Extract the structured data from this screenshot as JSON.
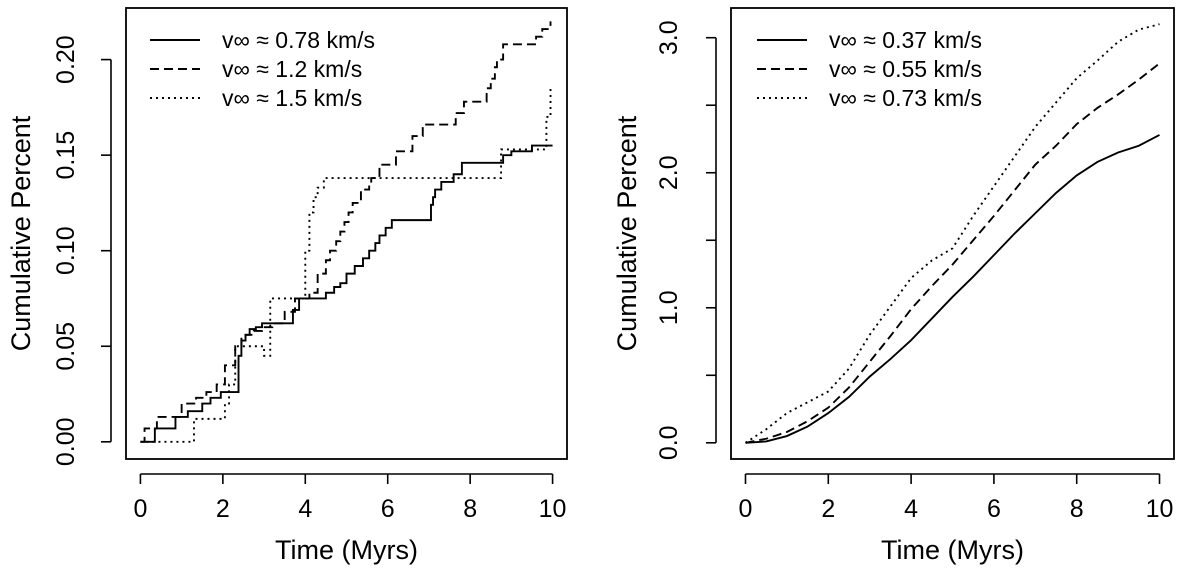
{
  "chart_data": [
    {
      "type": "line",
      "xlabel": "Time (Myrs)",
      "ylabel": "Cumulative Percent",
      "xlim": [
        -0.35,
        10.35
      ],
      "ylim": [
        -0.009,
        0.227
      ],
      "x_ticks": [
        0,
        2,
        4,
        6,
        8,
        10
      ],
      "x_tick_labels": [
        "0",
        "2",
        "4",
        "6",
        "8",
        "10"
      ],
      "y_ticks": [
        0,
        0.05,
        0.1,
        0.15,
        0.2
      ],
      "y_tick_labels": [
        "0.00",
        "0.05",
        "0.10",
        "0.15",
        "0.20"
      ],
      "legend_position": "top-left",
      "step": true,
      "series": [
        {
          "name": "v∞ ≈ 0.78 km/s",
          "line_style": "solid",
          "x": [
            0,
            0.35,
            0.55,
            0.85,
            1.15,
            1.5,
            1.7,
            1.95,
            2.2,
            2.38,
            2.45,
            2.55,
            2.65,
            2.8,
            2.95,
            3.5,
            3.7,
            3.85,
            4.4,
            4.5,
            4.7,
            4.85,
            5.0,
            5.2,
            5.4,
            5.55,
            5.7,
            5.8,
            5.95,
            6.1,
            7.0,
            7.05,
            7.1,
            7.15,
            7.3,
            7.6,
            7.8,
            8.4,
            8.8,
            9.0,
            9.5,
            10.0
          ],
          "y": [
            0,
            0.007,
            0.007,
            0.013,
            0.016,
            0.02,
            0.023,
            0.026,
            0.026,
            0.045,
            0.053,
            0.056,
            0.059,
            0.06,
            0.062,
            0.062,
            0.069,
            0.075,
            0.075,
            0.078,
            0.081,
            0.083,
            0.088,
            0.092,
            0.096,
            0.1,
            0.104,
            0.108,
            0.112,
            0.116,
            0.116,
            0.124,
            0.128,
            0.132,
            0.136,
            0.14,
            0.146,
            0.146,
            0.15,
            0.152,
            0.155,
            0.155
          ]
        },
        {
          "name": "v∞ ≈ 1.2 km/s",
          "line_style": "dashed",
          "x": [
            0,
            0.1,
            0.4,
            0.9,
            1.0,
            1.35,
            1.6,
            1.85,
            2.05,
            2.3,
            2.45,
            2.55,
            2.75,
            2.95,
            3.2,
            3.5,
            3.75,
            4.1,
            4.3,
            4.5,
            4.6,
            4.75,
            4.85,
            4.95,
            5.05,
            5.15,
            5.35,
            5.55,
            5.6,
            5.8,
            6.2,
            6.6,
            6.85,
            7.2,
            7.65,
            7.85,
            8.4,
            8.5,
            8.6,
            8.65,
            8.8,
            9.6,
            9.75,
            9.95
          ],
          "y": [
            0,
            0.007,
            0.013,
            0.013,
            0.02,
            0.023,
            0.026,
            0.03,
            0.04,
            0.05,
            0.055,
            0.056,
            0.058,
            0.06,
            0.062,
            0.068,
            0.075,
            0.078,
            0.088,
            0.095,
            0.1,
            0.105,
            0.11,
            0.115,
            0.12,
            0.125,
            0.132,
            0.135,
            0.138,
            0.145,
            0.152,
            0.16,
            0.166,
            0.166,
            0.172,
            0.178,
            0.185,
            0.19,
            0.196,
            0.2,
            0.208,
            0.212,
            0.216,
            0.22
          ]
        },
        {
          "name": "v∞ ≈ 1.5 km/s",
          "line_style": "dotted",
          "x": [
            0,
            0.5,
            1.2,
            1.3,
            2.05,
            2.15,
            2.3,
            2.7,
            3.0,
            3.15,
            3.9,
            4.0,
            4.1,
            4.2,
            4.3,
            4.45,
            8.75,
            9.85,
            9.95,
            10.0
          ],
          "y": [
            0,
            0,
            0,
            0.012,
            0.02,
            0.03,
            0.05,
            0.05,
            0.045,
            0.075,
            0.075,
            0.1,
            0.12,
            0.128,
            0.133,
            0.138,
            0.153,
            0.17,
            0.185,
            0.185
          ]
        }
      ]
    },
    {
      "type": "line",
      "xlabel": "Time (Myrs)",
      "ylabel": "Cumulative Percent",
      "xlim": [
        -0.35,
        10.35
      ],
      "ylim": [
        -0.12,
        3.22
      ],
      "x_ticks": [
        0,
        2,
        4,
        6,
        8,
        10
      ],
      "x_tick_labels": [
        "0",
        "2",
        "4",
        "6",
        "8",
        "10"
      ],
      "y_ticks": [
        0,
        0.5,
        1.0,
        1.5,
        2.0,
        2.5,
        3.0
      ],
      "y_tick_labels": [
        "0.0",
        "",
        "1.0",
        "",
        "2.0",
        "",
        "3.0"
      ],
      "legend_position": "top-left",
      "step": false,
      "series": [
        {
          "name": "v∞ ≈ 0.37 km/s",
          "line_style": "solid",
          "x": [
            0,
            0.5,
            1,
            1.5,
            2,
            2.5,
            3,
            3.5,
            4,
            4.5,
            5,
            5.5,
            6,
            6.5,
            7,
            7.5,
            8,
            8.5,
            9,
            9.5,
            10
          ],
          "y": [
            0,
            0.01,
            0.05,
            0.12,
            0.22,
            0.34,
            0.49,
            0.62,
            0.76,
            0.92,
            1.08,
            1.23,
            1.39,
            1.55,
            1.7,
            1.85,
            1.98,
            2.08,
            2.15,
            2.2,
            2.28
          ]
        },
        {
          "name": "v∞ ≈ 0.55 km/s",
          "line_style": "dashed",
          "x": [
            0,
            0.5,
            1,
            1.5,
            2,
            2.5,
            3,
            3.5,
            4,
            4.5,
            5,
            5.5,
            6,
            6.5,
            7,
            7.5,
            8,
            8.5,
            9,
            9.5,
            10
          ],
          "y": [
            0,
            0.03,
            0.08,
            0.16,
            0.26,
            0.41,
            0.6,
            0.79,
            0.99,
            1.16,
            1.32,
            1.5,
            1.68,
            1.87,
            2.06,
            2.2,
            2.36,
            2.48,
            2.58,
            2.69,
            2.81
          ]
        },
        {
          "name": "v∞ ≈ 0.73 km/s",
          "line_style": "dotted",
          "x": [
            0,
            0.5,
            1,
            1.5,
            2,
            2.5,
            3,
            3.5,
            4,
            4.5,
            5,
            5.5,
            6,
            6.5,
            7,
            7.5,
            8,
            8.5,
            9,
            9.5,
            10
          ],
          "y": [
            0,
            0.1,
            0.22,
            0.3,
            0.38,
            0.55,
            0.8,
            1.01,
            1.22,
            1.35,
            1.44,
            1.68,
            1.9,
            2.12,
            2.34,
            2.52,
            2.7,
            2.83,
            2.97,
            3.06,
            3.1
          ]
        }
      ]
    }
  ]
}
